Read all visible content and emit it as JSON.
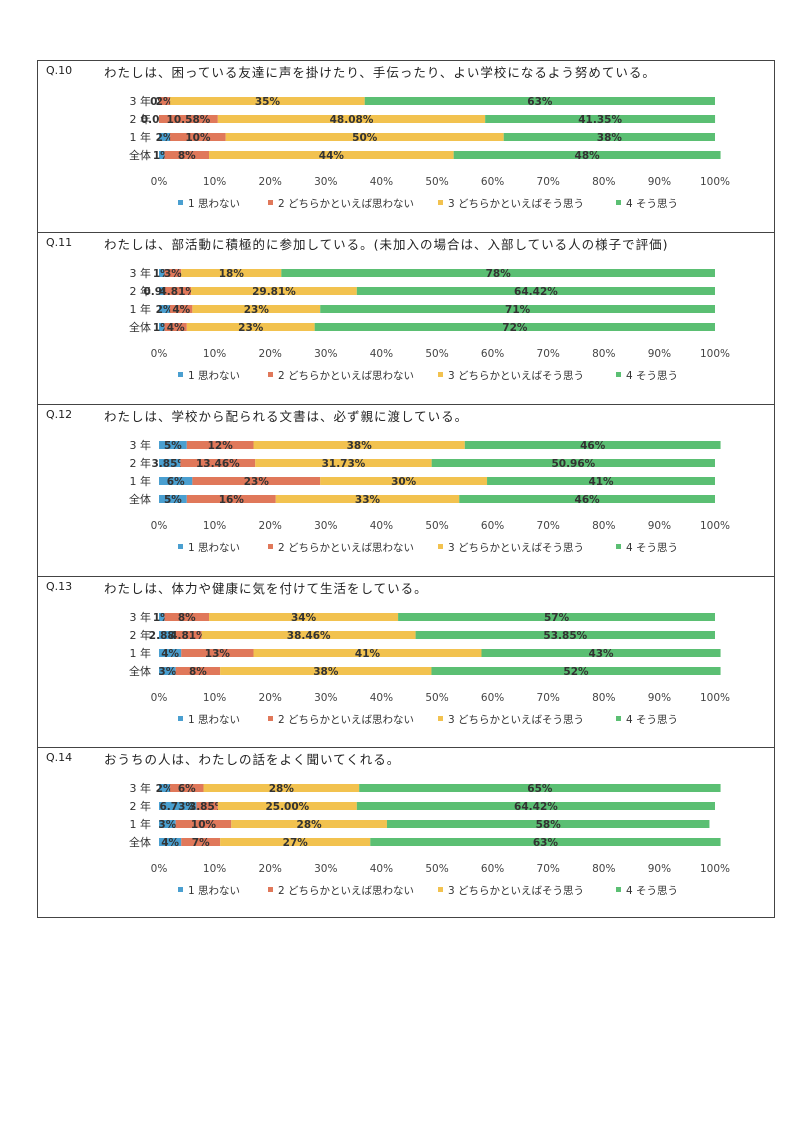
{
  "legend": [
    "1 思わない",
    "2 どちらかといえば思わない",
    "3 どちらかといえばそう思う",
    "4 そう思う"
  ],
  "colors": [
    "#4a9fd0",
    "#e0785a",
    "#f2c24f",
    "#5bbf73"
  ],
  "chart_data": [
    {
      "id": "Q.10",
      "type": "bar",
      "orientation": "horizontal",
      "stacked": true,
      "title": "わたしは、困っている友達に声を掛けたり、手伝ったり、よい学校になるよう努めている。",
      "categories": [
        "3 年",
        "2 年",
        "1 年",
        "全体"
      ],
      "labels": [
        [
          "0%",
          "2%",
          "35%",
          "63%"
        ],
        [
          "0.00%",
          "10.58%",
          "48.08%",
          "41.35%"
        ],
        [
          "2%",
          "10%",
          "50%",
          "38%"
        ],
        [
          "1%",
          "8%",
          "44%",
          "48%"
        ]
      ],
      "series": [
        {
          "name": "1 思わない",
          "values": [
            0,
            0,
            2,
            1
          ]
        },
        {
          "name": "2 どちらかといえば思わない",
          "values": [
            2,
            10.58,
            10,
            8
          ]
        },
        {
          "name": "3 どちらかといえばそう思う",
          "values": [
            35,
            48.08,
            50,
            44
          ]
        },
        {
          "name": "4 そう思う",
          "values": [
            63,
            41.35,
            38,
            48
          ]
        }
      ],
      "xticks": [
        "0%",
        "10%",
        "20%",
        "30%",
        "40%",
        "50%",
        "60%",
        "70%",
        "80%",
        "90%",
        "100%"
      ],
      "xlim": [
        0,
        100
      ]
    },
    {
      "id": "Q.11",
      "type": "bar",
      "orientation": "horizontal",
      "stacked": true,
      "title": "わたしは、部活動に積極的に参加している。(未加入の場合は、入部している人の様子で評価)",
      "categories": [
        "3 年",
        "2 年",
        "1 年",
        "全体"
      ],
      "labels": [
        [
          "1%",
          "3%",
          "18%",
          "78%"
        ],
        [
          "0.96%",
          "4.81%",
          "29.81%",
          "64.42%"
        ],
        [
          "2%",
          "4%",
          "23%",
          "71%"
        ],
        [
          "1%",
          "4%",
          "23%",
          "72%"
        ]
      ],
      "series": [
        {
          "name": "1 思わない",
          "values": [
            1,
            0.96,
            2,
            1
          ]
        },
        {
          "name": "2 どちらかといえば思わない",
          "values": [
            3,
            4.81,
            4,
            4
          ]
        },
        {
          "name": "3 どちらかといえばそう思う",
          "values": [
            18,
            29.81,
            23,
            23
          ]
        },
        {
          "name": "4 そう思う",
          "values": [
            78,
            64.42,
            71,
            72
          ]
        }
      ],
      "xticks": [
        "0%",
        "10%",
        "20%",
        "30%",
        "40%",
        "50%",
        "60%",
        "70%",
        "80%",
        "90%",
        "100%"
      ],
      "xlim": [
        0,
        100
      ]
    },
    {
      "id": "Q.12",
      "type": "bar",
      "orientation": "horizontal",
      "stacked": true,
      "title": "わたしは、学校から配られる文書は、必ず親に渡している。",
      "categories": [
        "3 年",
        "2 年",
        "1 年",
        "全体"
      ],
      "labels": [
        [
          "5%",
          "12%",
          "38%",
          "46%"
        ],
        [
          "3.85%",
          "13.46%",
          "31.73%",
          "50.96%"
        ],
        [
          "6%",
          "23%",
          "30%",
          "41%"
        ],
        [
          "5%",
          "16%",
          "33%",
          "46%"
        ]
      ],
      "series": [
        {
          "name": "1 思わない",
          "values": [
            5,
            3.85,
            6,
            5
          ]
        },
        {
          "name": "2 どちらかといえば思わない",
          "values": [
            12,
            13.46,
            23,
            16
          ]
        },
        {
          "name": "3 どちらかといえばそう思う",
          "values": [
            38,
            31.73,
            30,
            33
          ]
        },
        {
          "name": "4 そう思う",
          "values": [
            46,
            50.96,
            41,
            46
          ]
        }
      ],
      "xticks": [
        "0%",
        "10%",
        "20%",
        "30%",
        "40%",
        "50%",
        "60%",
        "70%",
        "80%",
        "90%",
        "100%"
      ],
      "xlim": [
        0,
        100
      ]
    },
    {
      "id": "Q.13",
      "type": "bar",
      "orientation": "horizontal",
      "stacked": true,
      "title": "わたしは、体力や健康に気を付けて生活をしている。",
      "categories": [
        "3 年",
        "2 年",
        "1 年",
        "全体"
      ],
      "labels": [
        [
          "1%",
          "8%",
          "34%",
          "57%"
        ],
        [
          "2.88%",
          "4.81%",
          "38.46%",
          "53.85%"
        ],
        [
          "4%",
          "13%",
          "41%",
          "43%"
        ],
        [
          "3%",
          "8%",
          "38%",
          "52%"
        ]
      ],
      "series": [
        {
          "name": "1 思わない",
          "values": [
            1,
            2.88,
            4,
            3
          ]
        },
        {
          "name": "2 どちらかといえば思わない",
          "values": [
            8,
            4.81,
            13,
            8
          ]
        },
        {
          "name": "3 どちらかといえばそう思う",
          "values": [
            34,
            38.46,
            41,
            38
          ]
        },
        {
          "name": "4 そう思う",
          "values": [
            57,
            53.85,
            43,
            52
          ]
        }
      ],
      "xticks": [
        "0%",
        "10%",
        "20%",
        "30%",
        "40%",
        "50%",
        "60%",
        "70%",
        "80%",
        "90%",
        "100%"
      ],
      "xlim": [
        0,
        100
      ]
    },
    {
      "id": "Q.14",
      "type": "bar",
      "orientation": "horizontal",
      "stacked": true,
      "title": "おうちの人は、わたしの話をよく聞いてくれる。",
      "categories": [
        "3 年",
        "2 年",
        "1 年",
        "全体"
      ],
      "labels": [
        [
          "2%",
          "6%",
          "28%",
          "65%"
        ],
        [
          "6.73%",
          "3.85%",
          "25.00%",
          "64.42%"
        ],
        [
          "3%",
          "10%",
          "28%",
          "58%"
        ],
        [
          "4%",
          "7%",
          "27%",
          "63%"
        ]
      ],
      "series": [
        {
          "name": "1 思わない",
          "values": [
            2,
            6.73,
            3,
            4
          ]
        },
        {
          "name": "2 どちらかといえば思わない",
          "values": [
            6,
            3.85,
            10,
            7
          ]
        },
        {
          "name": "3 どちらかといえばそう思う",
          "values": [
            28,
            25.0,
            28,
            27
          ]
        },
        {
          "name": "4 そう思う",
          "values": [
            65,
            64.42,
            58,
            63
          ]
        }
      ],
      "xticks": [
        "0%",
        "10%",
        "20%",
        "30%",
        "40%",
        "50%",
        "60%",
        "70%",
        "80%",
        "90%",
        "100%"
      ],
      "xlim": [
        0,
        100
      ]
    }
  ]
}
